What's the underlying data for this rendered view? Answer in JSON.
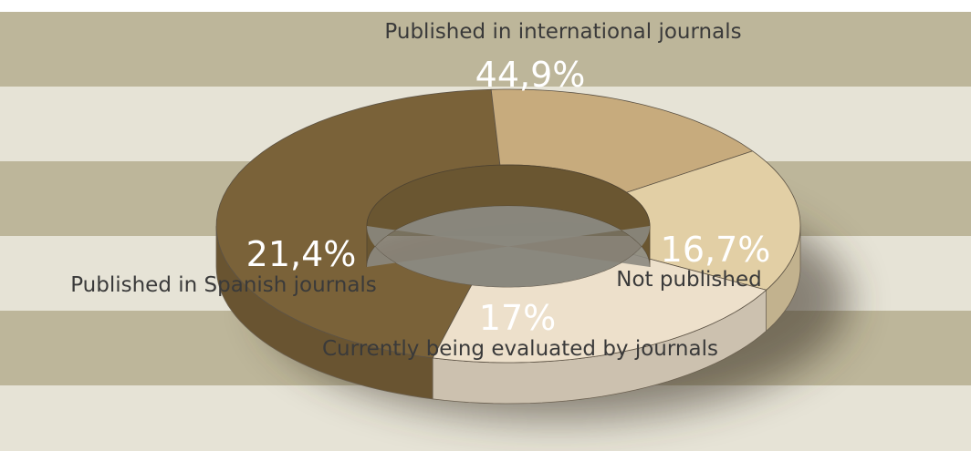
{
  "chart_data": {
    "type": "pie",
    "title": "",
    "style": "3d-donut",
    "series": [
      {
        "label": "Published in international journals",
        "value": 44.9,
        "display": "44,9%",
        "color": "#7a6239"
      },
      {
        "label": "Not published",
        "value": 16.7,
        "display": "16,7%",
        "color": "#c7ab7d"
      },
      {
        "label": "Currently being evaluated by journals",
        "value": 17.0,
        "display": "17%",
        "color": "#e2cfa5"
      },
      {
        "label": "Published in Spanish journals",
        "value": 21.4,
        "display": "21,4%",
        "color": "#ede0cb"
      }
    ],
    "background_band_colors": [
      "#bdb69a",
      "#e6e3d6"
    ]
  }
}
